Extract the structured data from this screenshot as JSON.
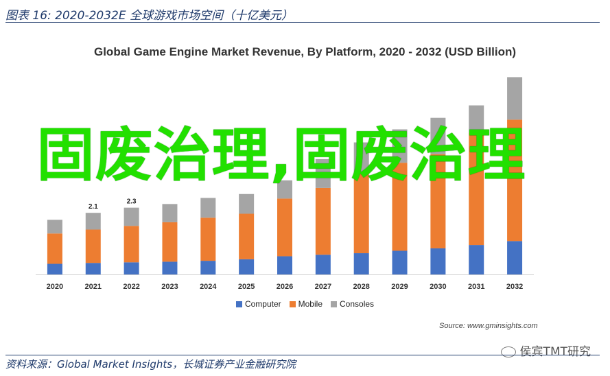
{
  "figure": {
    "caption": "图表 16:  2020-2032E 全球游戏市场空间（十亿美元）",
    "source": "资料来源：Global Market Insights，长城证券产业金融研究院",
    "watermark": "侯宾TMT研究"
  },
  "overlay_text": "固废治理,固废治理",
  "chart_data": {
    "type": "bar",
    "stacked": true,
    "title": "Global Game Engine Market Revenue, By Platform, 2020 - 2032 (USD Billion)",
    "categories": [
      "2020",
      "2021",
      "2022",
      "2023",
      "2024",
      "2025",
      "2026",
      "2027",
      "2028",
      "2029",
      "2030",
      "2031",
      "2032"
    ],
    "series": [
      {
        "name": "Computer",
        "color": "#4472c4",
        "values": [
          0.35,
          0.38,
          0.4,
          0.42,
          0.45,
          0.5,
          0.6,
          0.65,
          0.7,
          0.78,
          0.86,
          0.97,
          1.1
        ]
      },
      {
        "name": "Mobile",
        "color": "#ed7d31",
        "values": [
          1.0,
          1.1,
          1.2,
          1.3,
          1.42,
          1.5,
          1.9,
          2.2,
          2.65,
          2.9,
          3.1,
          3.7,
          4.0
        ]
      },
      {
        "name": "Consoles",
        "color": "#a5a5a5",
        "values": [
          0.45,
          0.55,
          0.6,
          0.6,
          0.65,
          0.65,
          0.6,
          0.95,
          1.0,
          1.1,
          1.2,
          0.9,
          1.4
        ]
      }
    ],
    "data_labels": [
      {
        "category": "2021",
        "text": "2.1"
      },
      {
        "category": "2022",
        "text": "2.3"
      }
    ],
    "ylim": [
      0,
      6.6
    ],
    "grid": false,
    "legend_position": "bottom",
    "source_note": "Source: www.gminsights.com"
  }
}
